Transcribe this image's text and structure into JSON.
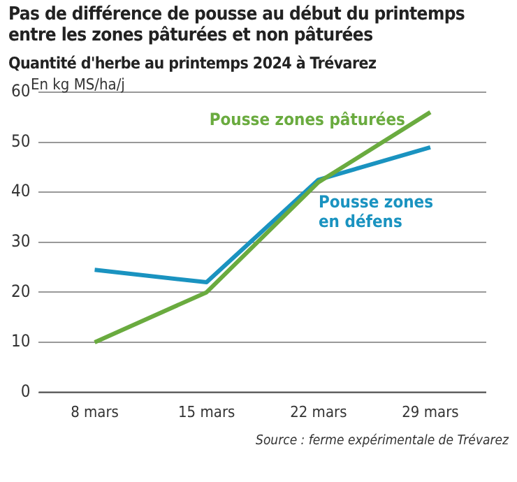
{
  "chart_data": {
    "type": "line",
    "title": "Pas de différence de pousse au début du printemps entre les zones pâturées et non pâturées",
    "subtitle": "Quantité d'herbe au printemps 2024 à Trévarez",
    "ylabel": "En kg MS/ha/j",
    "categories": [
      "8 mars",
      "15 mars",
      "22 mars",
      "29 mars"
    ],
    "series": [
      {
        "name": "Pousse zones pâturées",
        "color": "#6aab3f",
        "values": [
          10,
          20,
          42,
          56
        ]
      },
      {
        "name": "Pousse zones en défens",
        "color": "#1a93c0",
        "values": [
          24.5,
          22,
          42.5,
          49
        ]
      }
    ],
    "ylim": [
      0,
      60
    ],
    "yticks": [
      0,
      10,
      20,
      30,
      40,
      50,
      60
    ],
    "grid": "y",
    "legend": false,
    "marker": "none",
    "line_style": "solid",
    "annotations": [
      "Source : ferme expérimentale de Trévarez"
    ]
  }
}
